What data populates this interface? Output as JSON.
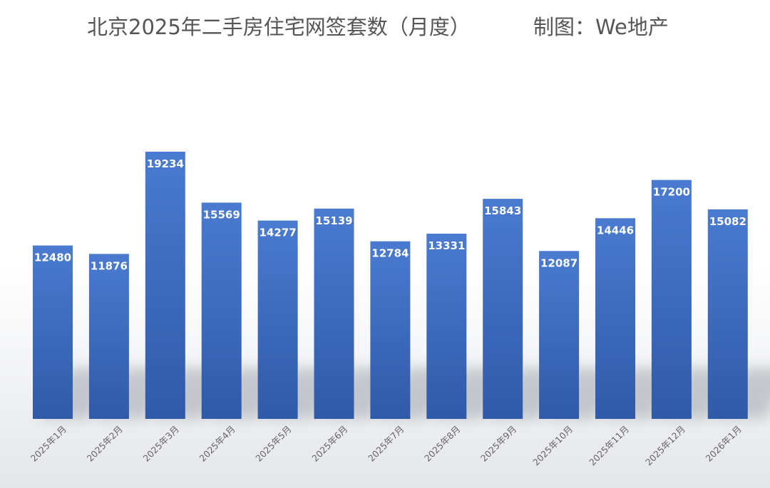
{
  "chart_data": {
    "type": "bar",
    "title": "北京2025年二手房住宅网签套数（月度）",
    "credit": "制图：We地产",
    "categories": [
      "2025年1月",
      "2025年2月",
      "2025年3月",
      "2025年4月",
      "2025年5月",
      "2025年6月",
      "2025年7月",
      "2025年8月",
      "2025年9月",
      "2025年10月",
      "2025年11月",
      "2025年12月",
      "2026年1月"
    ],
    "values": [
      12480,
      11876,
      19234,
      15569,
      14277,
      15139,
      12784,
      13331,
      15843,
      12087,
      14446,
      17200,
      15082
    ],
    "xlabel": "",
    "ylabel": "",
    "ylim": [
      0,
      22000
    ],
    "grid": false,
    "legend": "none",
    "data_labels": true,
    "bar_color": "#4472c4",
    "bar_color_dark": "#2f5597"
  }
}
